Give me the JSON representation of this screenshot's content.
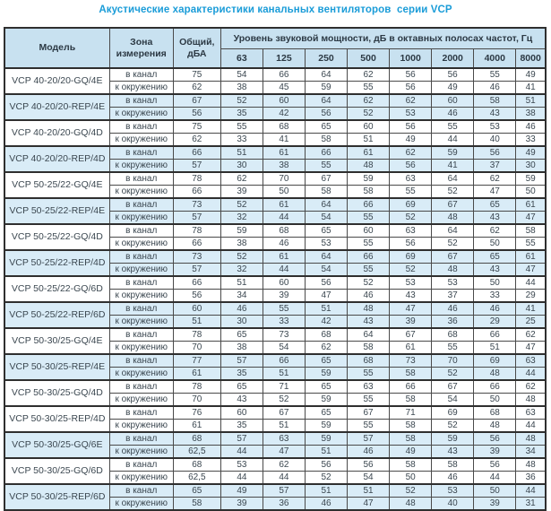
{
  "title": "Акустические характеристики канальных вентиляторов  серии VCP",
  "colors": {
    "title_text": "#1a9cd8",
    "header_background": "#c8e1f0",
    "shaded_row_background": "#d9ecf7",
    "border": "#4a4a4a"
  },
  "table": {
    "header": {
      "model": "Модель",
      "zone": "Зона измерения",
      "total": "Общий, дБА",
      "spl": "Уровень звуковой мощности, дБ в октавных полосах частот, Гц"
    },
    "frequencies": [
      "63",
      "125",
      "250",
      "500",
      "1000",
      "2000",
      "4000",
      "8000"
    ],
    "zone_labels": {
      "in_duct": "в канал",
      "to_env": "к окружению"
    },
    "rows": [
      {
        "model": "VCP 40-20/20-GQ/4E",
        "shaded": false,
        "in_duct": {
          "total": "75",
          "levels": [
            54,
            66,
            64,
            62,
            56,
            56,
            55,
            49
          ]
        },
        "to_env": {
          "total": "62",
          "levels": [
            38,
            45,
            59,
            55,
            56,
            49,
            46,
            41
          ]
        }
      },
      {
        "model": "VCP 40-20/20-REP/4E",
        "shaded": true,
        "in_duct": {
          "total": "67",
          "levels": [
            52,
            60,
            64,
            62,
            62,
            60,
            58,
            51
          ]
        },
        "to_env": {
          "total": "56",
          "levels": [
            35,
            42,
            56,
            52,
            53,
            46,
            43,
            38
          ]
        }
      },
      {
        "model": "VCP 40-20/20-GQ/4D",
        "shaded": false,
        "in_duct": {
          "total": "75",
          "levels": [
            55,
            68,
            65,
            60,
            56,
            55,
            53,
            46
          ]
        },
        "to_env": {
          "total": "62",
          "levels": [
            33,
            41,
            58,
            51,
            49,
            44,
            40,
            33
          ]
        }
      },
      {
        "model": "VCP 40-20/20-REP/4D",
        "shaded": true,
        "in_duct": {
          "total": "66",
          "levels": [
            51,
            61,
            66,
            61,
            62,
            59,
            56,
            49
          ]
        },
        "to_env": {
          "total": "57",
          "levels": [
            30,
            38,
            55,
            48,
            56,
            41,
            37,
            30
          ]
        }
      },
      {
        "model": "VCP 50-25/22-GQ/4E",
        "shaded": false,
        "in_duct": {
          "total": "78",
          "levels": [
            62,
            70,
            67,
            59,
            63,
            64,
            62,
            59
          ]
        },
        "to_env": {
          "total": "66",
          "levels": [
            39,
            50,
            58,
            58,
            55,
            52,
            47,
            50
          ]
        }
      },
      {
        "model": "VCP 50-25/22-REP/4E",
        "shaded": true,
        "in_duct": {
          "total": "73",
          "levels": [
            52,
            61,
            64,
            66,
            69,
            67,
            65,
            61
          ]
        },
        "to_env": {
          "total": "57",
          "levels": [
            32,
            44,
            54,
            55,
            52,
            48,
            43,
            47
          ]
        }
      },
      {
        "model": "VCP 50-25/22-GQ/4D",
        "shaded": false,
        "in_duct": {
          "total": "78",
          "levels": [
            59,
            68,
            65,
            60,
            63,
            64,
            62,
            58
          ]
        },
        "to_env": {
          "total": "66",
          "levels": [
            38,
            46,
            53,
            55,
            56,
            52,
            50,
            55
          ]
        }
      },
      {
        "model": "VCP 50-25/22-REP/4D",
        "shaded": true,
        "in_duct": {
          "total": "73",
          "levels": [
            52,
            61,
            64,
            66,
            69,
            67,
            65,
            61
          ]
        },
        "to_env": {
          "total": "57",
          "levels": [
            32,
            44,
            54,
            55,
            52,
            48,
            43,
            47
          ]
        }
      },
      {
        "model": "VCP 50-25/22-GQ/6D",
        "shaded": false,
        "in_duct": {
          "total": "66",
          "levels": [
            51,
            60,
            56,
            52,
            53,
            53,
            50,
            44
          ]
        },
        "to_env": {
          "total": "56",
          "levels": [
            34,
            39,
            47,
            46,
            43,
            37,
            33,
            29
          ]
        }
      },
      {
        "model": "VCP 50-25/22-REP/6D",
        "shaded": true,
        "in_duct": {
          "total": "60",
          "levels": [
            46,
            55,
            51,
            48,
            47,
            46,
            46,
            41
          ]
        },
        "to_env": {
          "total": "51",
          "levels": [
            30,
            33,
            42,
            43,
            39,
            36,
            29,
            25
          ]
        }
      },
      {
        "model": "VCP 50-30/25-GQ/4E",
        "shaded": false,
        "in_duct": {
          "total": "78",
          "levels": [
            65,
            73,
            68,
            64,
            67,
            68,
            66,
            62
          ]
        },
        "to_env": {
          "total": "70",
          "levels": [
            38,
            54,
            62,
            58,
            61,
            55,
            51,
            47
          ]
        }
      },
      {
        "model": "VCP 50-30/25-REP/4E",
        "shaded": true,
        "in_duct": {
          "total": "77",
          "levels": [
            57,
            66,
            65,
            68,
            73,
            70,
            69,
            63
          ]
        },
        "to_env": {
          "total": "61",
          "levels": [
            35,
            51,
            59,
            55,
            58,
            52,
            48,
            44
          ]
        }
      },
      {
        "model": "VCP 50-30/25-GQ/4D",
        "shaded": false,
        "in_duct": {
          "total": "78",
          "levels": [
            65,
            71,
            65,
            63,
            66,
            67,
            66,
            62
          ]
        },
        "to_env": {
          "total": "70",
          "levels": [
            43,
            52,
            59,
            55,
            58,
            54,
            50,
            48
          ]
        }
      },
      {
        "model": "VCP 50-30/25-REP/4D",
        "shaded": false,
        "in_duct": {
          "total": "76",
          "levels": [
            60,
            67,
            65,
            67,
            71,
            69,
            68,
            63
          ]
        },
        "to_env": {
          "total": "61",
          "levels": [
            35,
            51,
            59,
            55,
            58,
            52,
            48,
            44
          ]
        }
      },
      {
        "model": "VCP 50-30/25-GQ/6E",
        "shaded": true,
        "in_duct": {
          "total": "68",
          "levels": [
            57,
            63,
            59,
            57,
            58,
            59,
            56,
            48
          ]
        },
        "to_env": {
          "total": "62,5",
          "levels": [
            44,
            47,
            51,
            46,
            49,
            43,
            39,
            34
          ]
        }
      },
      {
        "model": "VCP 50-30/25-GQ/6D",
        "shaded": false,
        "in_duct": {
          "total": "68",
          "levels": [
            53,
            62,
            56,
            56,
            58,
            58,
            56,
            48
          ]
        },
        "to_env": {
          "total": "62,5",
          "levels": [
            44,
            44,
            52,
            54,
            50,
            46,
            44,
            36
          ]
        }
      },
      {
        "model": "VCP 50-30/25-REP/6D",
        "shaded": true,
        "in_duct": {
          "total": "65",
          "levels": [
            49,
            57,
            51,
            51,
            52,
            53,
            50,
            44
          ]
        },
        "to_env": {
          "total": "58",
          "levels": [
            39,
            36,
            46,
            47,
            48,
            40,
            39,
            31
          ]
        }
      }
    ]
  }
}
